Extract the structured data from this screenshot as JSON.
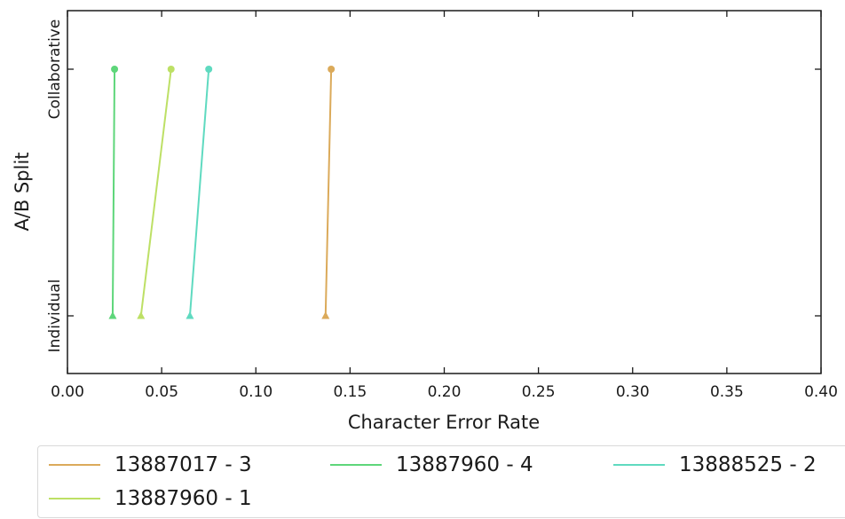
{
  "chart_data": {
    "type": "line",
    "xlabel": "Character Error Rate",
    "ylabel": "A/B Split",
    "xlim": [
      0.0,
      0.4
    ],
    "xticks": [
      "0.00",
      "0.05",
      "0.10",
      "0.15",
      "0.20",
      "0.25",
      "0.30",
      "0.35",
      "0.40"
    ],
    "categories": [
      "Individual",
      "Collaborative"
    ],
    "grid": false,
    "legend_position": "bottom",
    "series": [
      {
        "name": "13887017 - 3",
        "color": "#dbaa5a",
        "x": [
          0.137,
          0.14
        ]
      },
      {
        "name": "13887960 - 4",
        "color": "#5ed67a",
        "x": [
          0.024,
          0.025
        ]
      },
      {
        "name": "13888525 - 2",
        "color": "#5fdac0",
        "x": [
          0.065,
          0.075
        ]
      },
      {
        "name": "13887960 - 1",
        "color": "#bde065",
        "x": [
          0.039,
          0.055
        ]
      }
    ]
  }
}
